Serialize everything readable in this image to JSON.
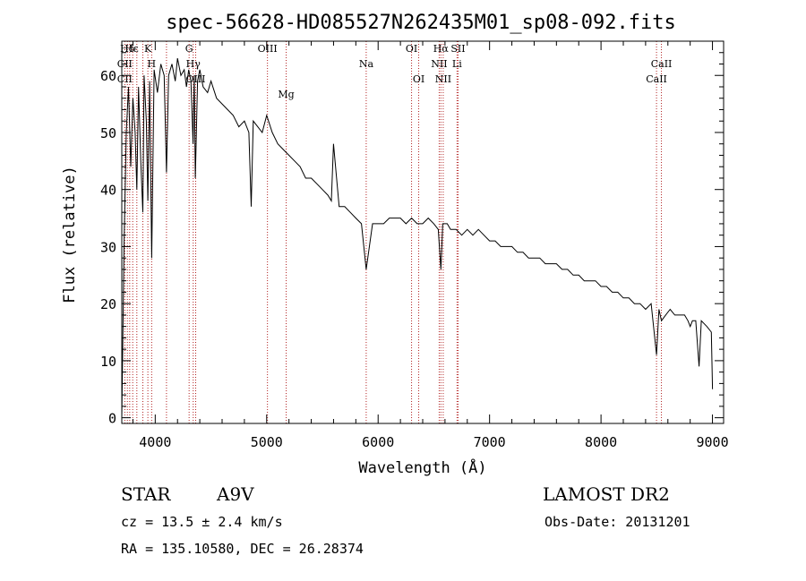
{
  "chart_data": {
    "type": "line",
    "title": "spec-56628-HD085527N262435M01_sp08-092.fits",
    "xlabel": "Wavelength (Å)",
    "ylabel": "Flux (relative)",
    "xlim": [
      3700,
      9100
    ],
    "ylim": [
      -1,
      66
    ],
    "xticks": [
      4000,
      5000,
      6000,
      7000,
      8000,
      9000
    ],
    "yticks": [
      0,
      10,
      20,
      30,
      40,
      50,
      60
    ],
    "grid": false,
    "series": [
      {
        "name": "flux",
        "x": [
          3700,
          3720,
          3740,
          3760,
          3780,
          3800,
          3820,
          3835,
          3850,
          3870,
          3889,
          3900,
          3920,
          3934,
          3950,
          3968,
          3990,
          4020,
          4050,
          4080,
          4101,
          4120,
          4150,
          4180,
          4200,
          4230,
          4260,
          4280,
          4300,
          4320,
          4340,
          4350,
          4360,
          4380,
          4400,
          4430,
          4470,
          4500,
          4550,
          4600,
          4650,
          4700,
          4750,
          4800,
          4840,
          4861,
          4880,
          4920,
          4960,
          5000,
          5050,
          5100,
          5150,
          5200,
          5250,
          5300,
          5350,
          5400,
          5450,
          5500,
          5550,
          5580,
          5600,
          5650,
          5700,
          5750,
          5800,
          5850,
          5893,
          5950,
          6000,
          6050,
          6100,
          6150,
          6200,
          6250,
          6300,
          6350,
          6400,
          6450,
          6500,
          6540,
          6563,
          6580,
          6620,
          6650,
          6700,
          6750,
          6800,
          6850,
          6900,
          6950,
          7000,
          7050,
          7100,
          7150,
          7200,
          7250,
          7300,
          7350,
          7400,
          7450,
          7500,
          7550,
          7600,
          7650,
          7700,
          7750,
          7800,
          7850,
          7900,
          7950,
          8000,
          8050,
          8100,
          8150,
          8200,
          8250,
          8300,
          8350,
          8400,
          8450,
          8498,
          8520,
          8542,
          8580,
          8620,
          8662,
          8700,
          8750,
          8780,
          8800,
          8820,
          8850,
          8880,
          8900,
          8950,
          8990,
          9000
        ],
        "y": [
          0,
          30,
          50,
          58,
          44,
          56,
          50,
          40,
          58,
          45,
          36,
          60,
          52,
          38,
          59,
          28,
          61,
          57,
          62,
          60,
          43,
          60,
          62,
          59,
          63,
          60,
          61,
          58,
          61,
          59,
          48,
          60,
          42,
          59,
          61,
          58,
          57,
          59,
          56,
          55,
          54,
          53,
          51,
          52,
          50,
          37,
          52,
          51,
          50,
          53,
          50,
          48,
          47,
          46,
          45,
          44,
          42,
          42,
          41,
          40,
          39,
          38,
          48,
          37,
          37,
          36,
          35,
          34,
          26,
          34,
          34,
          34,
          35,
          35,
          35,
          34,
          35,
          34,
          34,
          35,
          34,
          33,
          26,
          34,
          34,
          33,
          33,
          32,
          33,
          32,
          33,
          32,
          31,
          31,
          30,
          30,
          30,
          29,
          29,
          28,
          28,
          28,
          27,
          27,
          27,
          26,
          26,
          25,
          25,
          24,
          24,
          24,
          23,
          23,
          22,
          22,
          21,
          21,
          20,
          20,
          19,
          20,
          11,
          19,
          17,
          18,
          19,
          18,
          18,
          18,
          17,
          16,
          17,
          17,
          9,
          17,
          16,
          15,
          5
        ]
      }
    ],
    "line_annotations": [
      {
        "label": "Hδ",
        "wavelength": 3750,
        "row": 1
      },
      {
        "label": "CII",
        "wavelength": 3727,
        "row": 2
      },
      {
        "label": "CII",
        "wavelength": 3727,
        "row": 3
      },
      {
        "label": "Hε",
        "wavelength": 3789,
        "row": 1
      },
      {
        "label": "K",
        "wavelength": 3934,
        "row": 1
      },
      {
        "label": "H",
        "wavelength": 3968,
        "row": 2
      },
      {
        "label": "G",
        "wavelength": 4304,
        "row": 1
      },
      {
        "label": "Hγ",
        "wavelength": 4341,
        "row": 2
      },
      {
        "label": "OIII",
        "wavelength": 4363,
        "row": 3
      },
      {
        "label": "OIII",
        "wavelength": 5007,
        "row": 1
      },
      {
        "label": "Mg",
        "wavelength": 5175,
        "row": 4
      },
      {
        "label": "Na",
        "wavelength": 5893,
        "row": 2
      },
      {
        "label": "OI",
        "wavelength": 6300,
        "row": 1
      },
      {
        "label": "OI",
        "wavelength": 6364,
        "row": 3
      },
      {
        "label": "Hα",
        "wavelength": 6563,
        "row": 1
      },
      {
        "label": "NII",
        "wavelength": 6548,
        "row": 2
      },
      {
        "label": "NII",
        "wavelength": 6584,
        "row": 3
      },
      {
        "label": "SII",
        "wavelength": 6717,
        "row": 1
      },
      {
        "label": "Li",
        "wavelength": 6708,
        "row": 2
      },
      {
        "label": "CaII",
        "wavelength": 8542,
        "row": 2
      },
      {
        "label": "CaII",
        "wavelength": 8498,
        "row": 3
      }
    ],
    "marker_lines": [
      3727,
      3750,
      3771,
      3798,
      3835,
      3889,
      3934,
      3968,
      4101,
      4304,
      4341,
      4363,
      5007,
      5175,
      5893,
      6300,
      6364,
      6548,
      6563,
      6584,
      6708,
      6717,
      8498,
      8542
    ]
  },
  "info": {
    "object_type": "STAR",
    "spectral_class": "A9V",
    "survey": "LAMOST DR2",
    "redshift": "cz = 13.5 ± 2.4 km/s",
    "obs_date": "Obs-Date: 20131201",
    "coordinates": "RA = 135.10580, DEC =  26.28374"
  },
  "colors": {
    "spectrum": "#000000",
    "marker": "#b22222",
    "axis": "#000000"
  }
}
